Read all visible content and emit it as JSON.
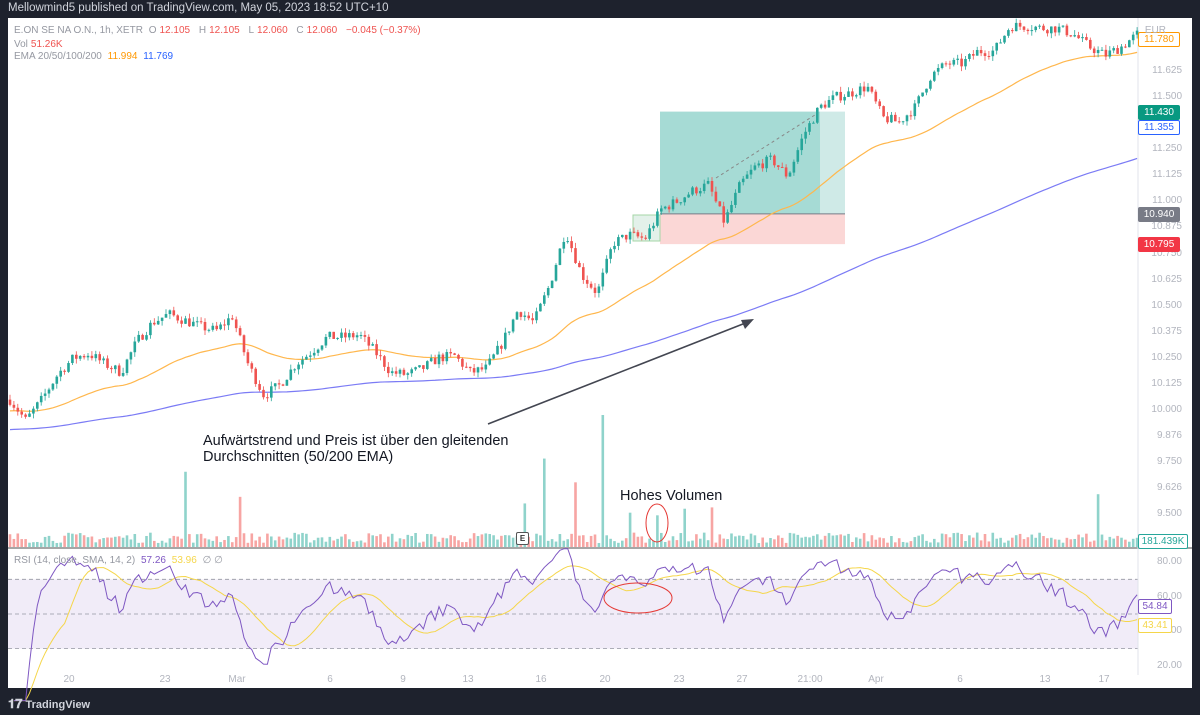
{
  "header": {
    "published": "Mellowmind5 published on TradingView.com, May 05, 2023 18:52 UTC+10"
  },
  "legend": {
    "symbol": "E.ON SE NA O.N., 1h, XETR",
    "o_label": "O",
    "o": "12.105",
    "h_label": "H",
    "h": "12.105",
    "l_label": "L",
    "l": "12.060",
    "c_label": "C",
    "c": "12.060",
    "change": "−0.045 (−0.37%)",
    "vol_label": "Vol",
    "vol": "51.26K",
    "ema_label": "EMA 20/50/100/200",
    "ema_a": "11.994",
    "ema_b": "11.769"
  },
  "rsi_legend": {
    "label": "RSI (14, close, SMA, 14, 2)",
    "rsi": "57.26",
    "sma": "53.96",
    "extra": "∅ ∅"
  },
  "price_axis": {
    "currency": "EUR",
    "ticks": [
      "11.625",
      "11.500",
      "11.250",
      "11.125",
      "11.000",
      "10.875",
      "10.750",
      "10.625",
      "10.500",
      "10.375",
      "10.250",
      "10.125",
      "10.000",
      "9.876",
      "9.750",
      "9.626",
      "9.500"
    ],
    "tick_values": [
      11.625,
      11.5,
      11.25,
      11.125,
      11.0,
      10.875,
      10.75,
      10.625,
      10.5,
      10.375,
      10.25,
      10.125,
      10.0,
      9.876,
      9.75,
      9.626,
      9.5
    ],
    "labels": [
      {
        "text": "11.780",
        "value": 11.78,
        "style": "orange-outline"
      },
      {
        "text": "11.430",
        "value": 11.43,
        "style": "green"
      },
      {
        "text": "11.355",
        "value": 11.355,
        "style": "blue-outline"
      },
      {
        "text": "10.940",
        "value": 10.94,
        "style": "grey"
      },
      {
        "text": "10.795",
        "value": 10.795,
        "style": "red"
      }
    ],
    "volume_label": "181.439K"
  },
  "rsi_axis": {
    "ticks": [
      "80.00",
      "60.00",
      "40.00",
      "20.00"
    ],
    "tick_values": [
      80,
      60,
      40,
      20
    ],
    "rsi_label": "54.84",
    "sma_label": "43.41"
  },
  "time_axis": [
    "20",
    "23",
    "Mar",
    "6",
    "9",
    "13",
    "16",
    "20",
    "23",
    "27",
    "21:00",
    "Apr",
    "6",
    "13",
    "17"
  ],
  "annotations": {
    "trend_text_1": "Aufwärtstrend und Preis ist über den gleitenden",
    "trend_text_2": "Durchschnitten (50/200 EMA)",
    "volume_text": "Hohes Volumen",
    "earnings_marker": "E"
  },
  "position": {
    "entry": 10.94,
    "target": 11.43,
    "stop": 10.795
  },
  "colors": {
    "up": "#26a69a",
    "down": "#ef5350",
    "ema50": "#ffb74d",
    "ema200": "#7b7bf5",
    "rsi": "#7e57c2",
    "rsi_sma": "#f5d64a",
    "target_zone": "#a6dbd5",
    "stop_zone": "#fbd7d6"
  },
  "chart_data": {
    "type": "candlestick",
    "interval": "1h",
    "ylim": [
      9.45,
      11.85
    ],
    "approx_close_path": [
      10.05,
      9.95,
      10.05,
      10.17,
      10.25,
      10.27,
      10.22,
      10.18,
      10.33,
      10.42,
      10.46,
      10.43,
      10.4,
      10.38,
      10.45,
      10.22,
      10.07,
      10.12,
      10.22,
      10.28,
      10.35,
      10.35,
      10.36,
      10.28,
      10.18,
      10.17,
      10.2,
      10.25,
      10.26,
      10.18,
      10.2,
      10.32,
      10.48,
      10.42,
      10.6,
      10.86,
      10.65,
      10.56,
      10.8,
      10.84,
      10.82,
      10.96,
      11.0,
      11.05,
      11.08,
      10.9,
      11.08,
      11.17,
      11.2,
      11.12,
      11.32,
      11.45,
      11.5,
      11.52,
      11.55,
      11.4,
      11.38,
      11.45,
      11.6,
      11.66,
      11.66,
      11.72,
      11.72,
      11.84,
      11.84,
      11.83,
      11.83,
      11.8,
      11.74,
      11.7,
      11.74,
      11.8
    ],
    "ema_periods": [
      50,
      200
    ],
    "rsi": {
      "period": 14,
      "sma": 14,
      "bands": [
        70,
        30
      ],
      "ylim": [
        15,
        85
      ]
    },
    "volume_spikes_rel": [
      [
        45,
        0.57
      ],
      [
        59,
        0.38
      ],
      [
        132,
        0.33
      ],
      [
        137,
        0.67
      ],
      [
        145,
        0.49
      ],
      [
        152,
        1.0
      ],
      [
        159,
        0.26
      ],
      [
        166,
        0.24
      ],
      [
        173,
        0.29
      ],
      [
        180,
        0.3
      ],
      [
        279,
        0.4
      ]
    ]
  }
}
